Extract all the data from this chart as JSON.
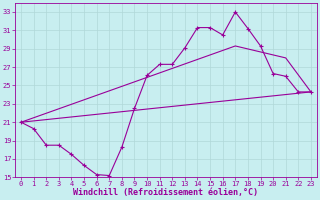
{
  "xlabel": "Windchill (Refroidissement éolien,°C)",
  "bg_color": "#c8eef0",
  "line_color": "#990099",
  "xlim": [
    -0.5,
    23.5
  ],
  "ylim": [
    15,
    34
  ],
  "yticks": [
    15,
    17,
    19,
    21,
    23,
    25,
    27,
    29,
    31,
    33
  ],
  "xticks": [
    0,
    1,
    2,
    3,
    4,
    5,
    6,
    7,
    8,
    9,
    10,
    11,
    12,
    13,
    14,
    15,
    16,
    17,
    18,
    19,
    20,
    21,
    22,
    23
  ],
  "curve1_x": [
    0,
    1,
    2,
    3,
    4,
    5,
    6,
    7,
    8,
    9,
    10,
    11,
    12,
    13,
    14,
    15,
    16,
    17,
    18,
    19,
    20,
    21,
    22,
    23
  ],
  "curve1_y": [
    21.0,
    20.3,
    18.5,
    18.5,
    17.5,
    16.3,
    15.3,
    15.2,
    18.3,
    22.5,
    26.1,
    27.3,
    27.3,
    29.1,
    31.3,
    31.3,
    30.5,
    33.0,
    31.2,
    29.3,
    26.3,
    26.0,
    24.3,
    24.3
  ],
  "line2_x": [
    0,
    23
  ],
  "line2_y": [
    21.0,
    24.3
  ],
  "line3_x": [
    0,
    17,
    21,
    23
  ],
  "line3_y": [
    21.0,
    29.3,
    28.0,
    24.3
  ],
  "grid_color": "#b0d8d8",
  "xlabel_fontsize": 6,
  "tick_fontsize": 5
}
